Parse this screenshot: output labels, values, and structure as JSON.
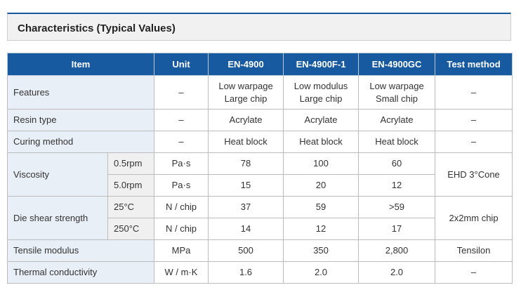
{
  "section": {
    "title": "Characteristics (Typical Values)"
  },
  "table": {
    "headers": [
      "Item",
      "Unit",
      "EN-4900",
      "EN-4900F-1",
      "EN-4900GC",
      "Test method"
    ],
    "rows": {
      "features": {
        "item": "Features",
        "unit": "–",
        "v1a": "Low warpage",
        "v1b": "Large chip",
        "v2a": "Low modulus",
        "v2b": "Large chip",
        "v3a": "Low warpage",
        "v3b": "Small chip",
        "method": "–"
      },
      "resin_type": {
        "item": "Resin type",
        "unit": "–",
        "v1": "Acrylate",
        "v2": "Acrylate",
        "v3": "Acrylate",
        "method": "–"
      },
      "curing_method": {
        "item": "Curing method",
        "unit": "–",
        "v1": "Heat block",
        "v2": "Heat block",
        "v3": "Heat block",
        "method": "–"
      },
      "viscosity": {
        "item": "Viscosity",
        "method": "EHD 3°Cone",
        "sub1": {
          "condition": "0.5rpm",
          "unit": "Pa·s",
          "v1": "78",
          "v2": "100",
          "v3": "60"
        },
        "sub2": {
          "condition": "5.0rpm",
          "unit": "Pa·s",
          "v1": "15",
          "v2": "20",
          "v3": "12"
        }
      },
      "die_shear": {
        "item": "Die shear strength",
        "method": "2x2mm chip",
        "sub1": {
          "condition": "25°C",
          "unit": "N / chip",
          "v1": "37",
          "v2": "59",
          "v3": ">59"
        },
        "sub2": {
          "condition": "250°C",
          "unit": "N / chip",
          "v1": "14",
          "v2": "12",
          "v3": "17"
        }
      },
      "tensile": {
        "item": "Tensile modulus",
        "unit": "MPa",
        "v1": "500",
        "v2": "350",
        "v3": "2,800",
        "method": "Tensilon"
      },
      "thermal": {
        "item": "Thermal conductivity",
        "unit": "W / m·K",
        "v1": "1.6",
        "v2": "2.0",
        "v3": "2.0",
        "method": "–"
      }
    }
  },
  "colors": {
    "header_bg": "#175aa0",
    "label_bg": "#e9eff6",
    "sublabel_bg": "#f0f0f0",
    "accent": "#1a5a9c"
  }
}
